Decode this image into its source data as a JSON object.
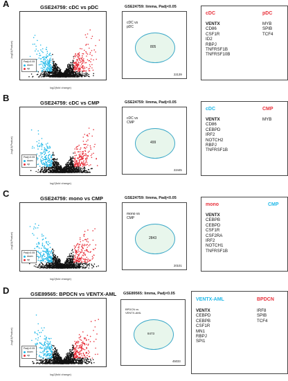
{
  "colors": {
    "red": "#e8303a",
    "blue": "#1fb8e8",
    "black": "#111111",
    "venn_fill": "#e8f6ec",
    "venn_stroke": "#3aa8c8"
  },
  "panels": [
    {
      "letter": "A",
      "volcano_title": "GSE24759: cDC vs pDC",
      "method": "GSE24759: limma, Padj<0.05",
      "ylabel": "-log10(Pvalue)",
      "xlabel": "log2(fold change)",
      "xticks": [
        "-8",
        "-6",
        "-4",
        "-2",
        "0",
        "2",
        "4",
        "6"
      ],
      "yticks": [
        "0",
        "5",
        "10",
        "15"
      ],
      "legend": {
        "title": "Padj<0.05",
        "down": "down",
        "up": "up"
      },
      "venn_label": "cDC vs\npDC",
      "venn_count": "805",
      "venn_total": "22139",
      "left_group": "cDC",
      "left_color": "#e8303a",
      "right_group": "pDC",
      "right_color": "#e8303a",
      "left_genes": [
        "VENTX",
        "CD86",
        "CSF1R",
        "ID2",
        "RBPJ",
        "TNFRSF1B",
        "TNFRSF10B"
      ],
      "right_genes": [
        "MYB",
        "SPIB",
        "TCF4"
      ]
    },
    {
      "letter": "B",
      "volcano_title": "GSE24759: cDC vs CMP",
      "method": "GSE24759: limma, Padj<0.05",
      "ylabel": "-log10(Pvalue)",
      "xlabel": "log2(fold change)",
      "xticks": [
        "-6",
        "-4",
        "-2",
        "0",
        "2",
        "4"
      ],
      "yticks": [
        "0",
        "5",
        "10",
        "15",
        "20"
      ],
      "legend": {
        "title": "Padj<0.05",
        "down": "down",
        "up": "up"
      },
      "venn_label": "cDC vs\nCMP",
      "venn_count": "499",
      "venn_total": "22445",
      "left_group": "cDC",
      "left_color": "#1fb8e8",
      "right_group": "CMP",
      "right_color": "#e8303a",
      "left_genes": [
        "VENTX",
        "CD86",
        "CEBPD",
        "IRF2",
        "NOTCH2",
        "RBPJ",
        "TNFRSF1B"
      ],
      "right_genes": [
        "MYB"
      ]
    },
    {
      "letter": "C",
      "volcano_title": "GSE24759: mono vs CMP",
      "method": "GSE24759: limma, Padj<0.05",
      "ylabel": "-log10(Pvalue)",
      "xlabel": "log2(fold change)",
      "xticks": [
        "-4",
        "-2",
        "0",
        "2",
        "4",
        "6"
      ],
      "yticks": [
        "0",
        "5",
        "10",
        "15",
        "20"
      ],
      "legend": {
        "title": "Padj<0.05",
        "down": "down",
        "up": "up"
      },
      "venn_label": "mono vs\nCMP",
      "venn_count": "2843",
      "venn_total": "20101",
      "left_group": "mono",
      "left_color": "#e8303a",
      "right_group": "CMP",
      "right_color": "#1fb8e8",
      "left_genes": [
        "VENTX",
        "CEBPB",
        "CEBPD",
        "CSF1R",
        "CSF2RA",
        "IRF2",
        "NOTCH1",
        "TNFRSF1B"
      ],
      "right_genes": []
    },
    {
      "letter": "D",
      "volcano_title": "GSE89565: BPDCN vs VENTX-AML",
      "method": "GSE89565: limma, Padj<0.05",
      "ylabel": "-log10(Pvalue)",
      "xlabel": "log2(fold change)",
      "xticks": [
        "-6",
        "-4",
        "-2",
        "0",
        "2",
        "4",
        "6",
        "8"
      ],
      "yticks": [
        "0",
        "5",
        "10",
        "15"
      ],
      "legend": {
        "title": "Padj<0.05",
        "down": "down",
        "up": "up"
      },
      "venn_label": "BPDCN vs\nVENTX-AML",
      "venn_count": "8473",
      "venn_total": "45033",
      "left_group": "VENTX-AML",
      "left_color": "#1fb8e8",
      "right_group": "BPDCN",
      "right_color": "#e8303a",
      "left_genes": [
        "VENTX",
        "CEBPD",
        "CEBPB",
        "CSF1R",
        "MN1",
        "RBPJ",
        "SPI1"
      ],
      "right_genes": [
        "IRF8",
        "SPIB",
        "TCF4"
      ]
    }
  ]
}
